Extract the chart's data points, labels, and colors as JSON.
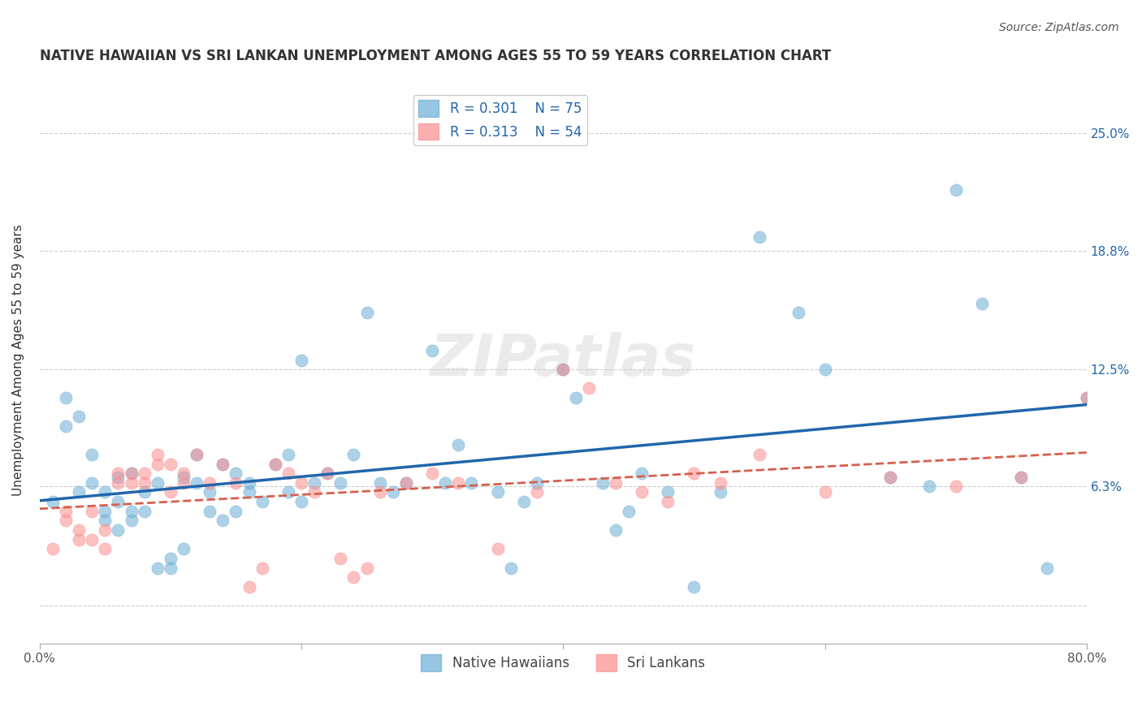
{
  "title": "NATIVE HAWAIIAN VS SRI LANKAN UNEMPLOYMENT AMONG AGES 55 TO 59 YEARS CORRELATION CHART",
  "source": "Source: ZipAtlas.com",
  "ylabel": "Unemployment Among Ages 55 to 59 years",
  "xlabel": "",
  "watermark": "ZIPatlas",
  "xlim": [
    0.0,
    0.8
  ],
  "ylim": [
    -0.02,
    0.28
  ],
  "xticks": [
    0.0,
    0.2,
    0.4,
    0.6,
    0.8
  ],
  "xticklabels": [
    "0.0%",
    "",
    "",
    "",
    "80.0%"
  ],
  "ytick_positions": [
    0.0,
    0.063,
    0.125,
    0.188,
    0.25
  ],
  "ytick_labels": [
    "",
    "6.3%",
    "12.5%",
    "18.8%",
    "25.0%"
  ],
  "legend_r1": "R = 0.301",
  "legend_n1": "N = 75",
  "legend_r2": "R = 0.313",
  "legend_n2": "N = 54",
  "color_blue": "#6baed6",
  "color_pink": "#fd8d8d",
  "line_blue": "#2166ac",
  "line_pink": "#d6604d",
  "background": "#ffffff",
  "native_hawaiian_x": [
    0.01,
    0.02,
    0.02,
    0.03,
    0.03,
    0.04,
    0.04,
    0.05,
    0.05,
    0.05,
    0.06,
    0.06,
    0.06,
    0.07,
    0.07,
    0.07,
    0.08,
    0.08,
    0.09,
    0.09,
    0.1,
    0.1,
    0.11,
    0.11,
    0.12,
    0.12,
    0.13,
    0.13,
    0.14,
    0.14,
    0.15,
    0.15,
    0.16,
    0.16,
    0.17,
    0.18,
    0.19,
    0.19,
    0.2,
    0.2,
    0.21,
    0.22,
    0.23,
    0.24,
    0.25,
    0.26,
    0.27,
    0.28,
    0.3,
    0.31,
    0.32,
    0.33,
    0.35,
    0.36,
    0.37,
    0.38,
    0.4,
    0.41,
    0.43,
    0.44,
    0.45,
    0.46,
    0.48,
    0.5,
    0.52,
    0.55,
    0.58,
    0.6,
    0.65,
    0.68,
    0.7,
    0.72,
    0.75,
    0.77,
    0.8
  ],
  "native_hawaiian_y": [
    0.055,
    0.095,
    0.11,
    0.1,
    0.06,
    0.08,
    0.065,
    0.06,
    0.05,
    0.045,
    0.04,
    0.068,
    0.055,
    0.07,
    0.05,
    0.045,
    0.05,
    0.06,
    0.065,
    0.02,
    0.02,
    0.025,
    0.03,
    0.068,
    0.08,
    0.065,
    0.06,
    0.05,
    0.045,
    0.075,
    0.07,
    0.05,
    0.065,
    0.06,
    0.055,
    0.075,
    0.08,
    0.06,
    0.055,
    0.13,
    0.065,
    0.07,
    0.065,
    0.08,
    0.155,
    0.065,
    0.06,
    0.065,
    0.135,
    0.065,
    0.085,
    0.065,
    0.06,
    0.02,
    0.055,
    0.065,
    0.125,
    0.11,
    0.065,
    0.04,
    0.05,
    0.07,
    0.06,
    0.01,
    0.06,
    0.195,
    0.155,
    0.125,
    0.068,
    0.063,
    0.22,
    0.16,
    0.068,
    0.02,
    0.11
  ],
  "sri_lankan_x": [
    0.01,
    0.02,
    0.02,
    0.03,
    0.03,
    0.04,
    0.04,
    0.05,
    0.05,
    0.06,
    0.06,
    0.07,
    0.07,
    0.08,
    0.08,
    0.09,
    0.09,
    0.1,
    0.1,
    0.11,
    0.11,
    0.12,
    0.13,
    0.14,
    0.15,
    0.16,
    0.17,
    0.18,
    0.19,
    0.2,
    0.21,
    0.22,
    0.23,
    0.24,
    0.25,
    0.26,
    0.28,
    0.3,
    0.32,
    0.35,
    0.38,
    0.4,
    0.42,
    0.44,
    0.46,
    0.48,
    0.5,
    0.52,
    0.55,
    0.6,
    0.65,
    0.7,
    0.75,
    0.8
  ],
  "sri_lankan_y": [
    0.03,
    0.045,
    0.05,
    0.035,
    0.04,
    0.035,
    0.05,
    0.03,
    0.04,
    0.065,
    0.07,
    0.065,
    0.07,
    0.065,
    0.07,
    0.075,
    0.08,
    0.06,
    0.075,
    0.065,
    0.07,
    0.08,
    0.065,
    0.075,
    0.065,
    0.01,
    0.02,
    0.075,
    0.07,
    0.065,
    0.06,
    0.07,
    0.025,
    0.015,
    0.02,
    0.06,
    0.065,
    0.07,
    0.065,
    0.03,
    0.06,
    0.125,
    0.115,
    0.065,
    0.06,
    0.055,
    0.07,
    0.065,
    0.08,
    0.06,
    0.068,
    0.063,
    0.068,
    0.11
  ]
}
